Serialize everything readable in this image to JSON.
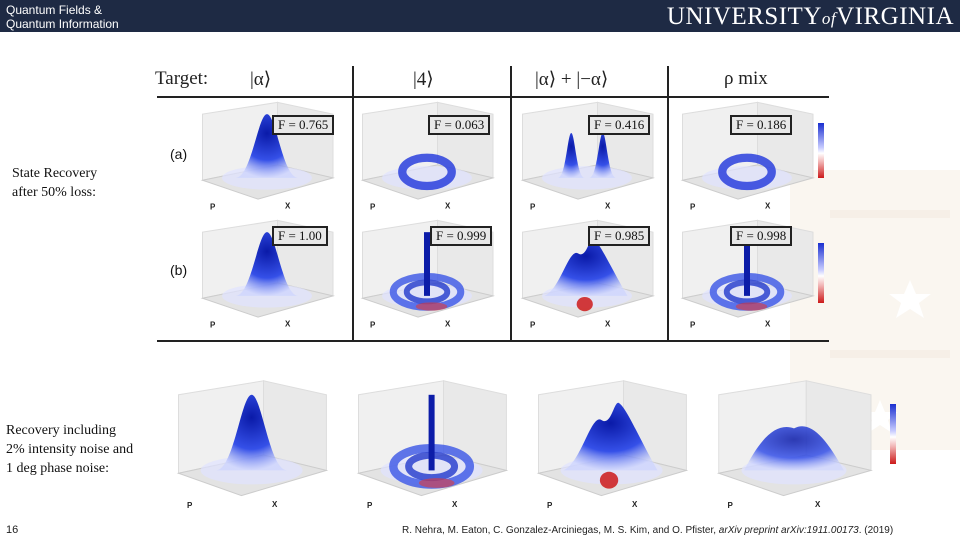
{
  "header": {
    "course_line1": "Quantum Fields &",
    "course_line2": "Quantum Information",
    "logo_main": "UNIVERSITY",
    "logo_of": "of",
    "logo_end": "VIRGINIA"
  },
  "labels": {
    "state_recovery": [
      "State Recovery",
      "after 50% loss:"
    ],
    "recovery_noise": [
      "Recovery including",
      "2% intensity noise and",
      "1 deg phase noise:"
    ],
    "row_a": "(a)",
    "row_b": "(b)"
  },
  "table_header": {
    "target": "Target:",
    "col1": "|α⟩",
    "col2": "|4⟩",
    "col3": "|α⟩ + |−α⟩",
    "col4": "ρ mix"
  },
  "fidelities": {
    "row_a": [
      "F = 0.765",
      "F = 0.063",
      "F = 0.416",
      "F = 0.186"
    ],
    "row_b": [
      "F = 1.00",
      "F = 0.999",
      "F = 0.985",
      "F = 0.998"
    ]
  },
  "footer": {
    "page": "16",
    "citation_authors": "R. Nehra, M. Eaton, C. Gonzalez-Arciniegas, M. S. Kim, and O. Pfister,",
    "citation_journal": "arXiv preprint arXiv:1911.00173",
    "citation_year": ". (2019)"
  },
  "colors": {
    "header_bg": "#1e2a44",
    "surface_blue": "#1a2fd0",
    "negative_red": "#cc1a1a"
  }
}
